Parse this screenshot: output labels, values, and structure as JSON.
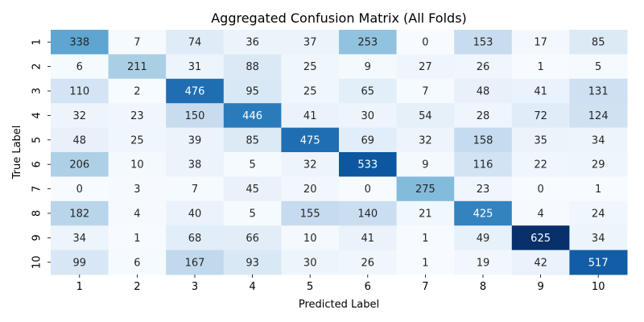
{
  "chart_data": {
    "type": "heatmap",
    "title": "Aggregated Confusion Matrix (All Folds)",
    "xlabel": "Predicted Label",
    "ylabel": "True Label",
    "x_labels": [
      "1",
      "2",
      "3",
      "4",
      "5",
      "6",
      "7",
      "8",
      "9",
      "10"
    ],
    "y_labels": [
      "1",
      "2",
      "3",
      "4",
      "5",
      "6",
      "7",
      "8",
      "9",
      "10"
    ],
    "colormap": "Blues",
    "vmin": 0,
    "vmax": 625,
    "colorbar": false,
    "values": [
      [
        338,
        7,
        74,
        36,
        37,
        253,
        0,
        153,
        17,
        85
      ],
      [
        6,
        211,
        31,
        88,
        25,
        9,
        27,
        26,
        1,
        5
      ],
      [
        110,
        2,
        476,
        95,
        25,
        65,
        7,
        48,
        41,
        131
      ],
      [
        32,
        23,
        150,
        446,
        41,
        30,
        54,
        28,
        72,
        124
      ],
      [
        48,
        25,
        39,
        85,
        475,
        69,
        32,
        158,
        35,
        34
      ],
      [
        206,
        10,
        38,
        5,
        32,
        533,
        9,
        116,
        22,
        29
      ],
      [
        0,
        3,
        7,
        45,
        20,
        0,
        275,
        23,
        0,
        1
      ],
      [
        182,
        4,
        40,
        5,
        155,
        140,
        21,
        425,
        4,
        24
      ],
      [
        34,
        1,
        68,
        66,
        10,
        41,
        1,
        49,
        625,
        34
      ],
      [
        99,
        6,
        167,
        93,
        30,
        26,
        1,
        19,
        42,
        517
      ]
    ]
  }
}
